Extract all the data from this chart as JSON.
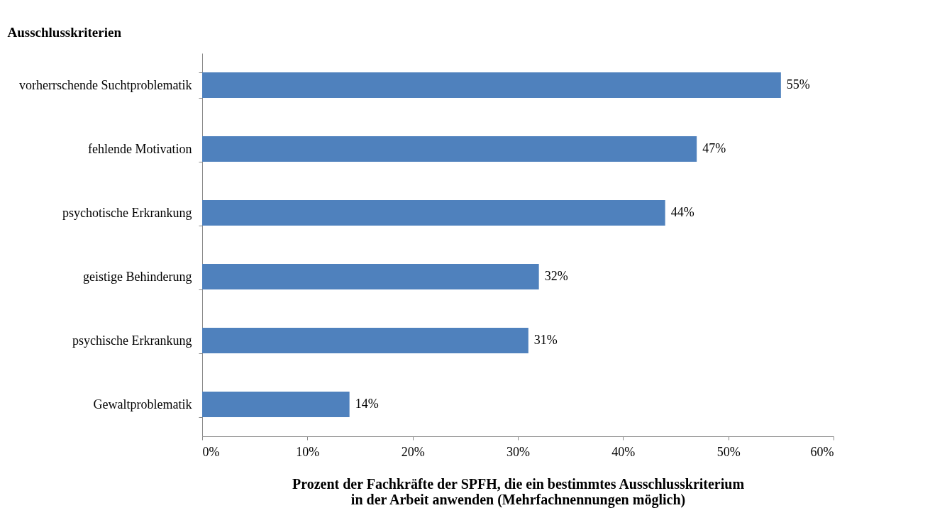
{
  "chart_data": {
    "type": "bar",
    "orientation": "horizontal",
    "ylabel": "Ausschlusskriterien",
    "xlabel": "Prozent der Fachkräfte der SPFH, die ein bestimmtes Ausschlusskriterium\nin der Arbeit anwenden (Mehrfachnennungen möglich)",
    "categories": [
      "vorherrschende Suchtproblematik",
      "fehlende Motivation",
      "psychotische Erkrankung",
      "geistige Behinderung",
      "psychische Erkrankung",
      "Gewaltproblematik"
    ],
    "values": [
      55,
      47,
      44,
      32,
      31,
      14
    ],
    "value_labels": [
      "55%",
      "47%",
      "44%",
      "32%",
      "31%",
      "14%"
    ],
    "color": "#4f81bd",
    "xlim": [
      0,
      60
    ],
    "xticks": [
      {
        "value": 0,
        "label": "0%"
      },
      {
        "value": 10,
        "label": "10%"
      },
      {
        "value": 20,
        "label": "20%"
      },
      {
        "value": 30,
        "label": "30%"
      },
      {
        "value": 40,
        "label": "40%"
      },
      {
        "value": 50,
        "label": "50%"
      },
      {
        "value": 60,
        "label": "60%"
      }
    ],
    "grid": false
  }
}
